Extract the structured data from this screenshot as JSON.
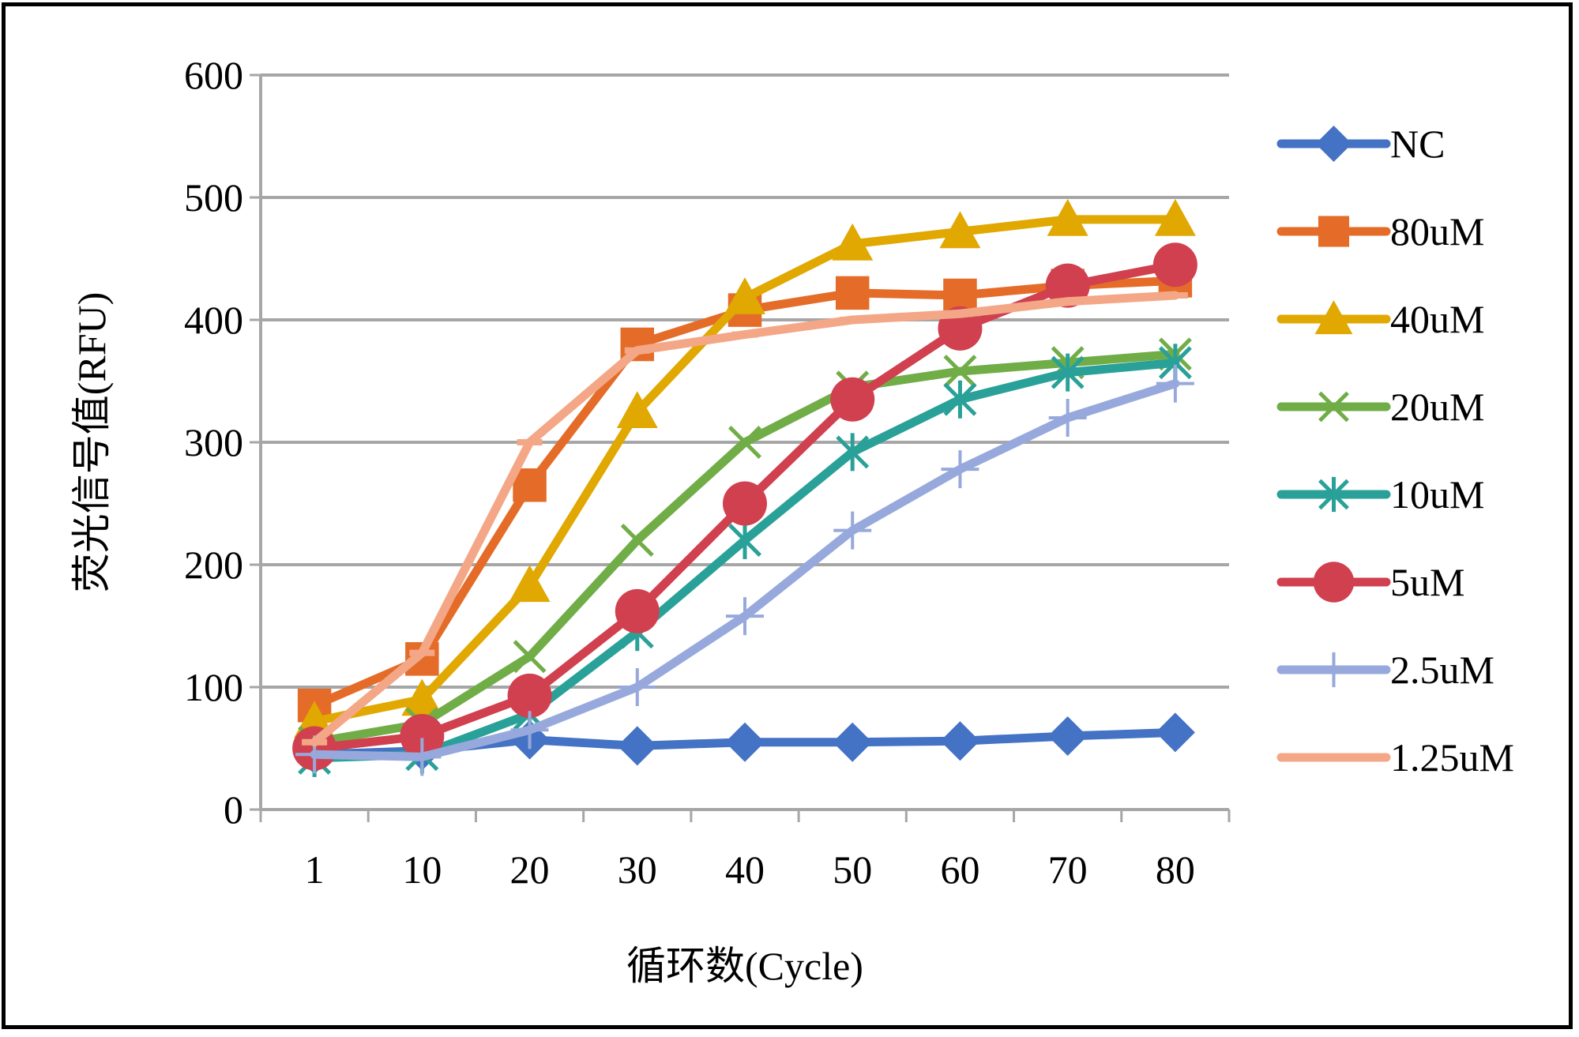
{
  "chart_data": {
    "type": "line",
    "title": "",
    "xlabel": "循环数(Cycle)",
    "ylabel": "荧光信号值(RFU)",
    "categories": [
      "1",
      "10",
      "20",
      "30",
      "40",
      "50",
      "60",
      "70",
      "80"
    ],
    "ylim": [
      0,
      600
    ],
    "yticks": [
      0,
      100,
      200,
      300,
      400,
      500,
      600
    ],
    "grid": true,
    "legend_position": "right",
    "series": [
      {
        "name": "NC",
        "color": "#4472C4",
        "marker": "diamond",
        "values": [
          45,
          48,
          57,
          52,
          55,
          55,
          56,
          60,
          63
        ]
      },
      {
        "name": "80uM",
        "color": "#E46C28",
        "marker": "square",
        "values": [
          85,
          123,
          265,
          380,
          408,
          422,
          420,
          428,
          432
        ]
      },
      {
        "name": "40uM",
        "color": "#E0A800",
        "marker": "triangle",
        "values": [
          72,
          90,
          183,
          325,
          418,
          462,
          472,
          482,
          482
        ]
      },
      {
        "name": "20uM",
        "color": "#70AD47",
        "marker": "x",
        "values": [
          55,
          70,
          125,
          220,
          300,
          345,
          358,
          365,
          372
        ]
      },
      {
        "name": "10uM",
        "color": "#2AA198",
        "marker": "asterisk",
        "values": [
          42,
          45,
          78,
          145,
          220,
          292,
          335,
          357,
          365
        ]
      },
      {
        "name": "5uM",
        "color": "#D0404F",
        "marker": "circle",
        "values": [
          50,
          60,
          93,
          162,
          250,
          335,
          393,
          428,
          445
        ]
      },
      {
        "name": "2.5uM",
        "color": "#97A9DC",
        "marker": "plus",
        "values": [
          45,
          43,
          65,
          100,
          158,
          228,
          278,
          320,
          348
        ]
      },
      {
        "name": "1.25uM",
        "color": "#F4A787",
        "marker": "dash",
        "values": [
          55,
          128,
          300,
          375,
          388,
          400,
          405,
          415,
          420
        ]
      }
    ]
  }
}
